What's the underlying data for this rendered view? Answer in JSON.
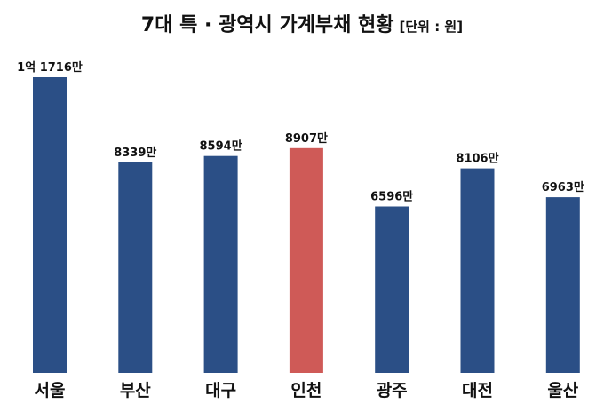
{
  "chart_data": {
    "type": "bar",
    "title": "7대 특 · 광역시 가계부채 현황",
    "unit_note": "[단위 : 원]",
    "categories": [
      "서울",
      "부산",
      "대구",
      "인천",
      "광주",
      "대전",
      "울산"
    ],
    "values": [
      117160000,
      83390000,
      85940000,
      89070000,
      65960000,
      81060000,
      69630000
    ],
    "value_labels": [
      "1억 1716만",
      "8339만",
      "8594만",
      "8907만",
      "6596만",
      "8106만",
      "6963만"
    ],
    "ylim": [
      0,
      117160000
    ],
    "grid": false,
    "colors": {
      "default": "#2b4f86",
      "highlight": "#cf5a57",
      "highlight_category": "인천"
    }
  }
}
